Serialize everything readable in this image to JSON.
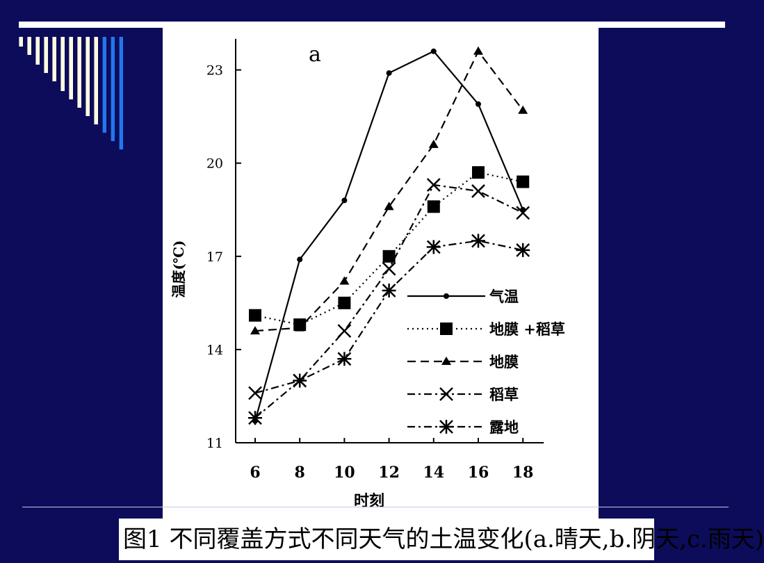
{
  "slide": {
    "caption": "图1  不同覆盖方式不同天气的土温变化(a.晴天,b.阴天,c.雨天)",
    "colors": {
      "background": "#0c0c5a",
      "rule": "#ffffff",
      "stripe_light": "#fffbe0",
      "stripe_blue": "#2277ee"
    },
    "decoration": "vertical-stripe-bars"
  },
  "chart_data": {
    "type": "line",
    "panel_label": "a",
    "xlabel": "时刻",
    "ylabel": "温度(℃)",
    "x": [
      6,
      8,
      10,
      12,
      14,
      16,
      18
    ],
    "ylim": [
      11,
      24
    ],
    "yticks": [
      11,
      14,
      17,
      20,
      23
    ],
    "legend_position": "right-lower",
    "series": [
      {
        "name": "气温",
        "marker": "dot",
        "dash": "solid",
        "values": [
          11.7,
          16.9,
          18.8,
          22.9,
          23.6,
          21.9,
          18.5
        ]
      },
      {
        "name": "地膜 +稻草",
        "marker": "square",
        "dash": "dotted",
        "values": [
          15.1,
          14.8,
          15.5,
          17.0,
          18.6,
          19.7,
          19.4
        ]
      },
      {
        "name": "地膜",
        "marker": "triangle",
        "dash": "dashed",
        "values": [
          14.6,
          14.7,
          16.2,
          18.6,
          20.6,
          23.6,
          21.7
        ]
      },
      {
        "name": "稻草",
        "marker": "x",
        "dash": "dashdot",
        "values": [
          12.6,
          13.0,
          14.6,
          16.6,
          19.3,
          19.1,
          18.4
        ]
      },
      {
        "name": "露地",
        "marker": "asterisk",
        "dash": "dashdot",
        "values": [
          11.8,
          13.0,
          13.7,
          15.9,
          17.3,
          17.5,
          17.2
        ]
      }
    ]
  }
}
